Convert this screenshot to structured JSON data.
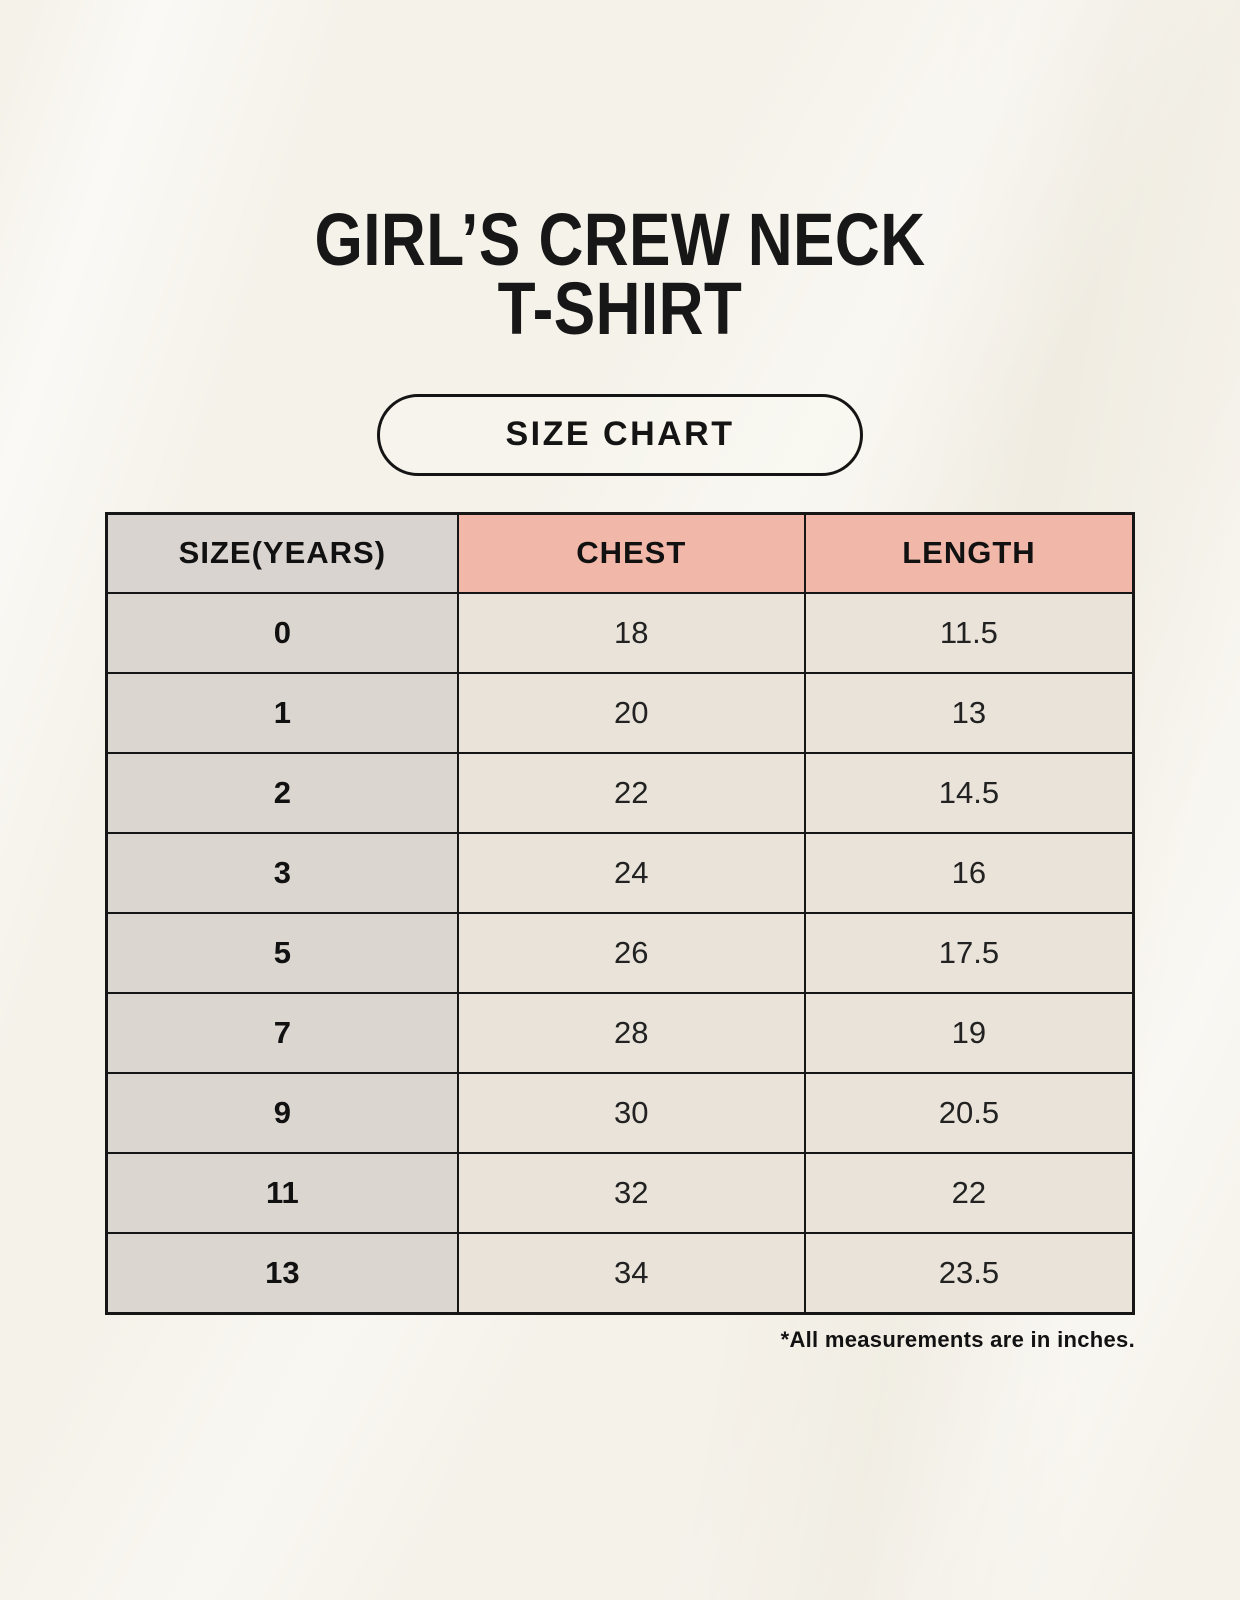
{
  "title": {
    "line1": "GIRL’S CREW NECK",
    "line2": "T-SHIRT"
  },
  "badge": {
    "label": "SIZE CHART"
  },
  "footnote": "*All measurements are in inches.",
  "chart_data": {
    "type": "table",
    "title": "GIRL’S CREW NECK T-SHIRT — SIZE CHART",
    "columns": [
      "SIZE(YEARS)",
      "CHEST",
      "LENGTH"
    ],
    "rows": [
      [
        "0",
        "18",
        "11.5"
      ],
      [
        "1",
        "20",
        "13"
      ],
      [
        "2",
        "22",
        "14.5"
      ],
      [
        "3",
        "24",
        "16"
      ],
      [
        "5",
        "26",
        "17.5"
      ],
      [
        "7",
        "28",
        "19"
      ],
      [
        "9",
        "30",
        "20.5"
      ],
      [
        "11",
        "32",
        "22"
      ],
      [
        "13",
        "34",
        "23.5"
      ]
    ],
    "units": "inches",
    "layout": {
      "grid": true,
      "legend_position": "none"
    }
  },
  "colors": {
    "background": "#f5f2ea",
    "header_size_bg": "#dad4d1",
    "header_measure_bg": "#f1b7a9",
    "body_size_bg": "#dcd6d1",
    "body_value_bg": "#eae3d9",
    "border": "#161616",
    "text": "#141414"
  }
}
